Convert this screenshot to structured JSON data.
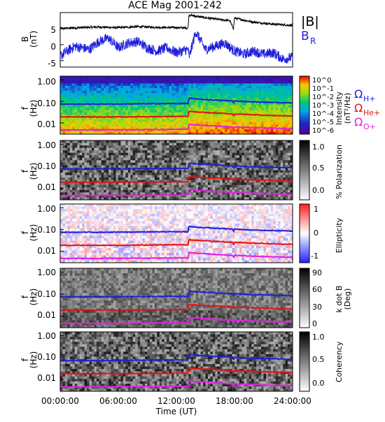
{
  "title": "ACE Mag 2001-242",
  "colors": {
    "blue": "#1e1edc",
    "red": "#e01414",
    "magenta": "#e020e0",
    "black": "#000000"
  },
  "x_axis": {
    "label": "Time (UT)",
    "ticks": [
      "00:00:00",
      "06:00:00",
      "12:00:00",
      "18:00:00",
      "24:00:00"
    ]
  },
  "chart_data": [
    {
      "type": "line",
      "panel": "field",
      "ylabel_line1": "B",
      "ylabel_line2": "(nT)",
      "y_ticks": [
        "5",
        "0",
        "-5"
      ],
      "ylim": [
        -7,
        10
      ],
      "xlim": [
        0,
        24
      ],
      "legend": {
        "B_total": "|B|",
        "B_R_main": "B",
        "B_R_sub": "R"
      },
      "series": [
        {
          "name": "|B|",
          "color": "#000000",
          "x": [
            0,
            2,
            4,
            6,
            8,
            10,
            12,
            13.2,
            13.3,
            13.8,
            14.5,
            15.5,
            16.5,
            17.5,
            17.9,
            18,
            19,
            20,
            22,
            24
          ],
          "y": [
            5.0,
            5.3,
            5.5,
            5.3,
            5.6,
            5.4,
            5.3,
            5.2,
            9.3,
            9.0,
            8.6,
            8.2,
            7.8,
            7.5,
            5.0,
            8.3,
            7.6,
            7.0,
            6.4,
            6.0
          ]
        },
        {
          "name": "B_R",
          "color": "#1e1edc",
          "x": [
            0,
            1.5,
            3,
            4,
            5,
            6,
            7,
            8,
            9,
            10,
            11,
            12,
            13.2,
            13.3,
            14,
            15,
            16,
            17,
            18,
            19,
            20,
            21,
            22,
            23,
            24
          ],
          "y": [
            -3.5,
            -0.5,
            -1.5,
            1.0,
            2.0,
            -1.0,
            0.5,
            1.0,
            -1.0,
            -2.0,
            -1.0,
            -2.5,
            -1.5,
            -4.0,
            4.0,
            -1.5,
            -0.5,
            0.5,
            -2.0,
            -3.0,
            -2.0,
            -3.0,
            -2.5,
            -4.5,
            -4.0
          ]
        }
      ]
    },
    {
      "type": "heatmap",
      "panel": "intensity",
      "ylabel_line1": "f",
      "ylabel_line2": "(Hz)",
      "y_ticks": [
        "1.00",
        "0.10",
        "0.01"
      ],
      "ylim": [
        0.003,
        1.5
      ],
      "yscale": "log",
      "colorbar": {
        "scale": "rainbow",
        "ticks": [
          "10^0",
          "10^-1",
          "10^-2",
          "10^-3",
          "10^-4",
          "10^-5",
          "10^-6"
        ],
        "label_line1": "Intensity",
        "label_line2": "(nT²/Hz)"
      },
      "legend": {
        "H_main": "Ω",
        "H_sub": "H+",
        "He_main": "Ω",
        "He_sub": "He+",
        "O_main": "Ω",
        "O_sub": "O+"
      }
    },
    {
      "type": "heatmap",
      "panel": "polarization",
      "ylabel_line1": "f",
      "ylabel_line2": "(Hz)",
      "y_ticks": [
        "1.00",
        "0.10",
        "0.01"
      ],
      "ylim": [
        0.003,
        1.5
      ],
      "yscale": "log",
      "colorbar": {
        "scale": "gray",
        "ticks": [
          "1.0",
          "0.5",
          "0.0"
        ],
        "label_line1": "% Polarization",
        "label_line2": ""
      }
    },
    {
      "type": "heatmap",
      "panel": "ellipticity",
      "ylabel_line1": "f",
      "ylabel_line2": "(Hz)",
      "y_ticks": [
        "1.00",
        "0.10",
        "0.01"
      ],
      "ylim": [
        0.003,
        1.5
      ],
      "yscale": "log",
      "colorbar": {
        "scale": "bwr",
        "ticks": [
          "1",
          "0",
          "-1"
        ],
        "label_line1": "Ellipticity",
        "label_line2": ""
      }
    },
    {
      "type": "heatmap",
      "panel": "kdotb",
      "ylabel_line1": "f",
      "ylabel_line2": "(Hz)",
      "y_ticks": [
        "1.00",
        "0.10",
        "0.01"
      ],
      "ylim": [
        0.003,
        1.5
      ],
      "yscale": "log",
      "colorbar": {
        "scale": "gray",
        "ticks": [
          "90",
          "60",
          "30",
          "0"
        ],
        "label_line1": "k dot B",
        "label_line2": "(Deg)"
      }
    },
    {
      "type": "heatmap",
      "panel": "coherency",
      "ylabel_line1": "f",
      "ylabel_line2": "(Hz)",
      "y_ticks": [
        "1.00",
        "0.10",
        "0.01"
      ],
      "ylim": [
        0.003,
        1.5
      ],
      "yscale": "log",
      "colorbar": {
        "scale": "gray",
        "ticks": [
          "1.0",
          "0.5",
          "0.0"
        ],
        "label_line1": "Coherency",
        "label_line2": ""
      }
    }
  ],
  "gyro_lines": {
    "x": [
      0,
      6,
      12,
      13.2,
      13.3,
      14,
      16,
      17.8,
      17.9,
      18,
      20,
      22,
      24
    ],
    "H": [
      0.075,
      0.076,
      0.08,
      0.08,
      0.14,
      0.13,
      0.115,
      0.105,
      0.08,
      0.105,
      0.095,
      0.09,
      0.085
    ],
    "He": [
      0.019,
      0.019,
      0.02,
      0.02,
      0.035,
      0.032,
      0.029,
      0.026,
      0.02,
      0.026,
      0.024,
      0.022,
      0.021
    ],
    "O": [
      0.0047,
      0.0048,
      0.005,
      0.005,
      0.0088,
      0.0081,
      0.0072,
      0.0065,
      0.005,
      0.0065,
      0.006,
      0.0056,
      0.0053
    ]
  }
}
